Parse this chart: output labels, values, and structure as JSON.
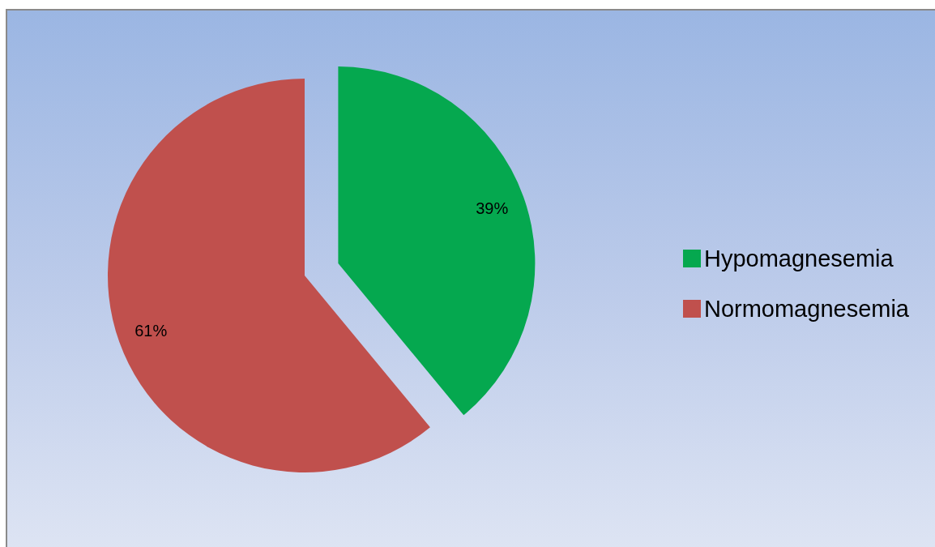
{
  "chart_data": {
    "type": "pie",
    "categories": [
      "Hypomagnesemia",
      "Normomagnesemia"
    ],
    "values": [
      39,
      61
    ],
    "colors": [
      "#05a84f",
      "#c0504d"
    ],
    "value_labels": [
      "39%",
      "61%"
    ],
    "legend": "right"
  }
}
